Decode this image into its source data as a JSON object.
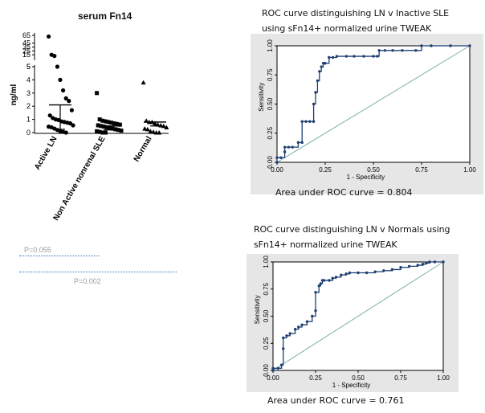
{
  "colors": {
    "roc_bg": "#e6e6e6",
    "roc_curve": "#1f3f73",
    "roc_diag": "#7fb0aa",
    "marker": "#000000",
    "pline": "#2f6fc0"
  },
  "scatter": {
    "title": "serum Fn14",
    "ylabel": "ng/ml",
    "upper_ticks": [
      "65",
      "45",
      "35",
      "25",
      "15",
      "5"
    ],
    "lower_ticks": [
      "5",
      "4",
      "3",
      "2",
      "1",
      "0"
    ],
    "groups": [
      "Active LN",
      "Non Active nonrenal SLE",
      "Normal"
    ],
    "p_values": [
      "P=0.055",
      "P=0.002"
    ]
  },
  "chart_data": [
    {
      "type": "scatter",
      "title": "serum Fn14",
      "ylabel": "ng/ml",
      "categories": [
        "Active LN",
        "Non Active nonrenal SLE",
        "Normal"
      ],
      "y_axis_segments": [
        {
          "ticks": [
            5,
            15,
            25,
            35,
            45,
            65
          ],
          "range": [
            5,
            65
          ]
        },
        {
          "ticks": [
            0,
            1,
            2,
            3,
            4,
            5
          ],
          "range": [
            0,
            5
          ]
        }
      ],
      "series": [
        {
          "name": "Active LN",
          "marker": "circle",
          "values": [
            62,
            15,
            12,
            5,
            4,
            3.2,
            2.6,
            2.4,
            1.7,
            1.3,
            1.1,
            1.0,
            0.95,
            0.85,
            0.8,
            0.75,
            0.7,
            0.55,
            0.45,
            0.4,
            0.3,
            0.2,
            0.1,
            0.05,
            0
          ],
          "mean": 2.1,
          "error_bar": [
            0.25,
            2.1
          ]
        },
        {
          "name": "Non Active nonrenal SLE",
          "marker": "square",
          "values": [
            3.0,
            1.0,
            0.9,
            0.85,
            0.8,
            0.75,
            0.7,
            0.65,
            0.6,
            0.55,
            0.5,
            0.45,
            0.4,
            0.35,
            0.3,
            0.25,
            0.2,
            0.15,
            0.1,
            0.05,
            0,
            0
          ],
          "mean": 0.5,
          "error_bar": [
            0.2,
            0.5
          ]
        },
        {
          "name": "Normal",
          "marker": "triangle",
          "values": [
            3.8,
            0.9,
            0.8,
            0.8,
            0.7,
            0.6,
            0.55,
            0.5,
            0.4,
            0.3,
            0.25,
            0.1,
            0.05,
            0,
            0
          ],
          "mean": 0.8,
          "error_bar": [
            0.5,
            0.8
          ]
        }
      ]
    },
    {
      "type": "line",
      "title": "ROC curve distinguishing LN v Inactive SLE using sFn14+ normalized urine TWEAK",
      "xlabel": "1 - Specificity",
      "ylabel": "Sensitivity",
      "xlim": [
        0,
        1
      ],
      "ylim": [
        0,
        1
      ],
      "ticks": [
        "0.00",
        "0.25",
        "0.50",
        "0.75",
        "1.00"
      ],
      "series": [
        {
          "name": "ROC",
          "x": [
            0,
            0,
            0.02,
            0.04,
            0.04,
            0.06,
            0.08,
            0.11,
            0.13,
            0.13,
            0.15,
            0.17,
            0.19,
            0.19,
            0.2,
            0.21,
            0.22,
            0.23,
            0.24,
            0.25,
            0.27,
            0.29,
            0.31,
            0.36,
            0.4,
            0.45,
            0.5,
            0.52,
            0.53,
            0.56,
            0.6,
            0.65,
            0.72,
            0.75,
            0.8,
            0.9,
            1.0
          ],
          "y": [
            0,
            0.04,
            0.04,
            0.09,
            0.13,
            0.13,
            0.13,
            0.17,
            0.17,
            0.35,
            0.35,
            0.35,
            0.35,
            0.5,
            0.6,
            0.7,
            0.78,
            0.82,
            0.85,
            0.85,
            0.9,
            0.9,
            0.91,
            0.91,
            0.91,
            0.91,
            0.91,
            0.91,
            0.96,
            0.96,
            0.96,
            0.96,
            0.96,
            1.0,
            1.0,
            1.0,
            1.0
          ]
        }
      ],
      "reference_line": [
        [
          0,
          0
        ],
        [
          1,
          1
        ]
      ],
      "auc_text": "Area under ROC curve = 0.804"
    },
    {
      "type": "line",
      "title": "ROC curve distinguishing LN v Normals using sFn14+ normalized urine TWEAK",
      "xlabel": "1 - Specificity",
      "ylabel": "Sensitivity",
      "xlim": [
        0,
        1
      ],
      "ylim": [
        0,
        1
      ],
      "ticks": [
        "0.00",
        "0.25",
        "0.50",
        "0.75",
        "1.00"
      ],
      "series": [
        {
          "name": "ROC",
          "x": [
            0,
            0,
            0.03,
            0.05,
            0.06,
            0.06,
            0.08,
            0.1,
            0.13,
            0.15,
            0.17,
            0.2,
            0.23,
            0.25,
            0.25,
            0.27,
            0.28,
            0.29,
            0.3,
            0.33,
            0.35,
            0.37,
            0.4,
            0.43,
            0.45,
            0.5,
            0.55,
            0.6,
            0.65,
            0.7,
            0.75,
            0.8,
            0.85,
            0.88,
            0.9,
            0.92,
            0.95,
            1.0
          ],
          "y": [
            0,
            0.02,
            0.02,
            0.05,
            0.2,
            0.3,
            0.32,
            0.34,
            0.38,
            0.4,
            0.42,
            0.45,
            0.5,
            0.55,
            0.72,
            0.78,
            0.8,
            0.83,
            0.83,
            0.83,
            0.85,
            0.86,
            0.88,
            0.89,
            0.9,
            0.9,
            0.9,
            0.91,
            0.92,
            0.93,
            0.95,
            0.96,
            0.97,
            0.98,
            0.99,
            1.0,
            1.0,
            1.0
          ]
        }
      ],
      "reference_line": [
        [
          0,
          0
        ],
        [
          1,
          1
        ]
      ],
      "auc_text": "Area under ROC curve = 0.761"
    }
  ]
}
